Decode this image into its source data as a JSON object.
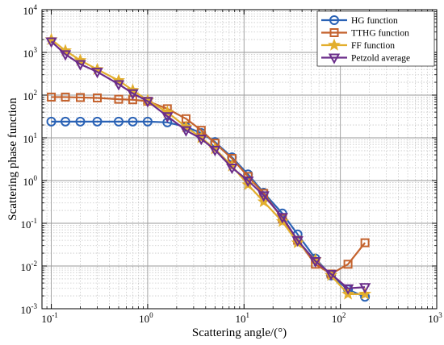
{
  "chart_data": {
    "type": "line",
    "xlabel": "Scattering angle/(°)",
    "ylabel": "Scattering phase function",
    "xscale": "log",
    "yscale": "log",
    "xlim": [
      0.08,
      1000
    ],
    "ylim": [
      0.001,
      10000
    ],
    "grid": true,
    "legend_position": "top-right",
    "x_ticks": [
      {
        "value": 0.1,
        "base": "10",
        "exp": "-1"
      },
      {
        "value": 1,
        "base": "10",
        "exp": "0"
      },
      {
        "value": 10,
        "base": "10",
        "exp": "1"
      },
      {
        "value": 100,
        "base": "10",
        "exp": "2"
      },
      {
        "value": 1000,
        "base": "10",
        "exp": "3"
      }
    ],
    "y_ticks": [
      {
        "value": 0.001,
        "base": "10",
        "exp": "-3"
      },
      {
        "value": 0.01,
        "base": "10",
        "exp": "-2"
      },
      {
        "value": 0.1,
        "base": "10",
        "exp": "-1"
      },
      {
        "value": 1,
        "base": "10",
        "exp": "0"
      },
      {
        "value": 10,
        "base": "10",
        "exp": "1"
      },
      {
        "value": 100,
        "base": "10",
        "exp": "2"
      },
      {
        "value": 1000,
        "base": "10",
        "exp": "3"
      },
      {
        "value": 10000,
        "base": "10",
        "exp": "4"
      }
    ],
    "series": [
      {
        "name": "HG function",
        "color": "#2a62b5",
        "marker": "circle",
        "x": [
          0.1,
          0.14,
          0.2,
          0.3,
          0.5,
          0.7,
          1.0,
          1.6,
          2.5,
          3.6,
          5.0,
          7.5,
          11,
          16,
          25,
          36,
          55,
          80,
          120,
          180
        ],
        "y": [
          24,
          24,
          24,
          24,
          24,
          24,
          24,
          23,
          18,
          13,
          8,
          3.5,
          1.4,
          0.52,
          0.17,
          0.055,
          0.015,
          0.006,
          0.0028,
          0.0019
        ]
      },
      {
        "name": "TTHG function",
        "color": "#c4622d",
        "marker": "square",
        "x": [
          0.1,
          0.14,
          0.2,
          0.3,
          0.5,
          0.7,
          1.0,
          1.6,
          2.5,
          3.6,
          5.0,
          7.5,
          11,
          16,
          25,
          36,
          55,
          80,
          120,
          180
        ],
        "y": [
          90,
          90,
          88,
          86,
          80,
          78,
          72,
          48,
          28,
          15,
          7.5,
          3.3,
          1.25,
          0.5,
          0.13,
          0.04,
          0.011,
          0.0065,
          0.011,
          0.035
        ]
      },
      {
        "name": "FF function",
        "color": "#e2ae2d",
        "marker": "star",
        "x": [
          0.1,
          0.14,
          0.2,
          0.3,
          0.5,
          0.7,
          1.0,
          1.6,
          2.5,
          3.6,
          5.0,
          7.5,
          11,
          16,
          25,
          36,
          55,
          80,
          120,
          180
        ],
        "y": [
          2000,
          1100,
          650,
          400,
          220,
          130,
          75,
          40,
          18,
          10,
          5.5,
          2.2,
          0.8,
          0.32,
          0.11,
          0.035,
          0.014,
          0.006,
          0.0022,
          0.0022
        ]
      },
      {
        "name": "Petzold average",
        "color": "#6b2d8a",
        "marker": "triangle-down",
        "x": [
          0.1,
          0.14,
          0.2,
          0.3,
          0.5,
          0.7,
          1.0,
          1.6,
          2.5,
          3.6,
          5.0,
          7.5,
          11,
          16,
          25,
          36,
          55,
          80,
          120,
          180
        ],
        "y": [
          1800,
          900,
          530,
          350,
          180,
          110,
          72,
          32,
          15,
          9.5,
          5.2,
          2,
          1,
          0.45,
          0.14,
          0.04,
          0.013,
          0.0065,
          0.003,
          0.0032
        ]
      }
    ]
  }
}
